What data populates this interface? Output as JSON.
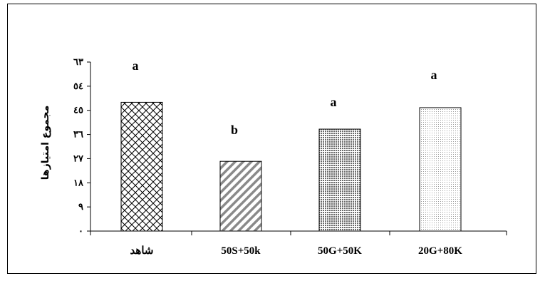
{
  "chart_data": {
    "type": "bar",
    "categories": [
      "شاهد",
      "50S+50k",
      "50G+50K",
      "20G+80K"
    ],
    "values": [
      48,
      26,
      38,
      46
    ],
    "significance": [
      "a",
      "b",
      "a",
      "a"
    ],
    "ylabel": "مجموع امتيازها",
    "xlabel": "",
    "title": "",
    "ylim": [
      0,
      63
    ],
    "yticks": [
      0,
      9,
      18,
      27,
      36,
      45,
      54,
      63
    ],
    "yticks_labels": [
      "٠",
      "٩",
      "١٨",
      "٢٧",
      "٣٦",
      "٤٥",
      "٥٤",
      "٦٣"
    ],
    "patterns": [
      "crosshatch",
      "diagonal-stripes",
      "dense-dots",
      "sparse-dots"
    ],
    "colors": {
      "bar_stroke": "#000000",
      "pattern_ink": "#000000",
      "background": "#ffffff"
    }
  }
}
